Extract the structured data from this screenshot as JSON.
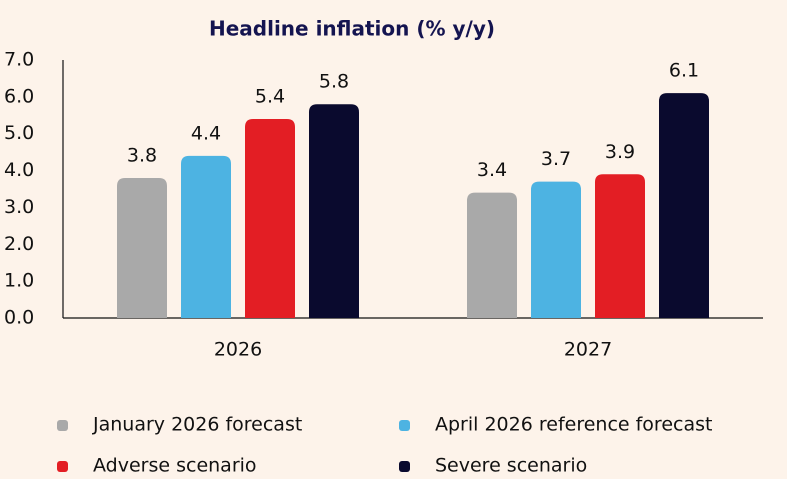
{
  "chart_data": {
    "type": "bar",
    "title": "Headline inflation (% y/y)",
    "categories": [
      "2026",
      "2027"
    ],
    "series": [
      {
        "name": "January 2026 forecast",
        "color": "#a9a9a9",
        "values": [
          3.8,
          3.4
        ]
      },
      {
        "name": "April 2026 reference forecast",
        "color": "#4db3e2",
        "values": [
          4.4,
          3.7
        ]
      },
      {
        "name": "Adverse scenario",
        "color": "#e31e24",
        "values": [
          5.4,
          3.9
        ]
      },
      {
        "name": "Severe scenario",
        "color": "#0a0a2e",
        "values": [
          5.8,
          6.1
        ]
      }
    ],
    "ylim": [
      0,
      7
    ],
    "yticks": [
      {
        "value": 0,
        "label": "0.0"
      },
      {
        "value": 1,
        "label": "1.0"
      },
      {
        "value": 2,
        "label": "2.0"
      },
      {
        "value": 3,
        "label": "3.0"
      },
      {
        "value": 4,
        "label": "4.0"
      },
      {
        "value": 5,
        "label": "5.0"
      },
      {
        "value": 6,
        "label": "6.0"
      },
      {
        "value": 7,
        "label": "7.0"
      }
    ],
    "grid": false
  }
}
